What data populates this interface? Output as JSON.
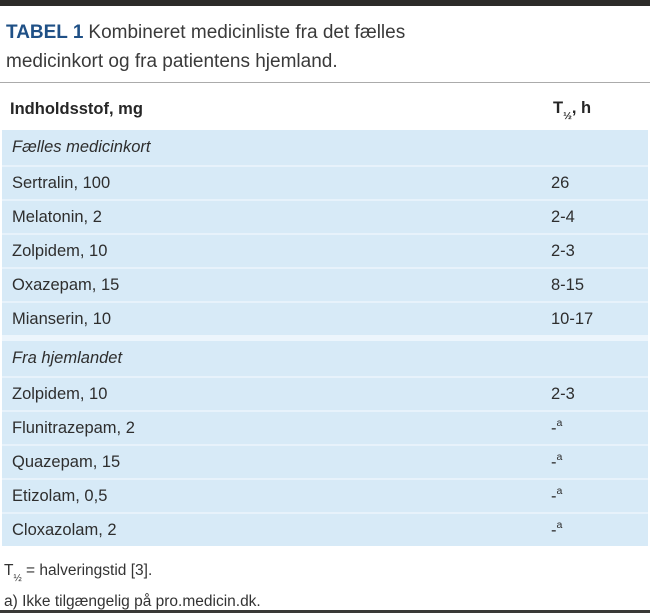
{
  "title": {
    "label": "TABEL 1",
    "text": "Kombineret medicinliste fra det fælles medicinkort og fra patientens hjemland."
  },
  "table": {
    "columns": [
      {
        "label": "Indholdsstof, mg"
      },
      {
        "base": "T",
        "sub": "½",
        "suffix": ", h"
      }
    ],
    "sections": [
      {
        "header": "Fælles medicinkort",
        "rows": [
          {
            "name": "Sertralin, 100",
            "value": "26",
            "value_sup": ""
          },
          {
            "name": "Melatonin, 2",
            "value": "2-4",
            "value_sup": ""
          },
          {
            "name": "Zolpidem, 10",
            "value": "2-3",
            "value_sup": ""
          },
          {
            "name": "Oxazepam, 15",
            "value": "8-15",
            "value_sup": ""
          },
          {
            "name": "Mianserin, 10",
            "value": "10-17",
            "value_sup": ""
          }
        ]
      },
      {
        "header": "Fra hjemlandet",
        "rows": [
          {
            "name": "Zolpidem, 10",
            "value": "2-3",
            "value_sup": ""
          },
          {
            "name": "Flunitrazepam, 2",
            "value": "-",
            "value_sup": "a"
          },
          {
            "name": "Quazepam, 15",
            "value": "-",
            "value_sup": "a"
          },
          {
            "name": "Etizolam, 0,5",
            "value": "-",
            "value_sup": "a"
          },
          {
            "name": "Cloxazolam, 2",
            "value": "-",
            "value_sup": "a"
          }
        ]
      }
    ]
  },
  "footnotes": [
    {
      "base": "T",
      "sub": "½",
      "rest": " = halveringstid [3]."
    },
    {
      "text": "a) Ikke tilgængelig på pro.medicin.dk."
    }
  ],
  "colors": {
    "accent_blue": "#1f5086",
    "row_background": "#d7eaf7",
    "rule_dark": "#2c2b29",
    "text": "#2e2e2e"
  }
}
